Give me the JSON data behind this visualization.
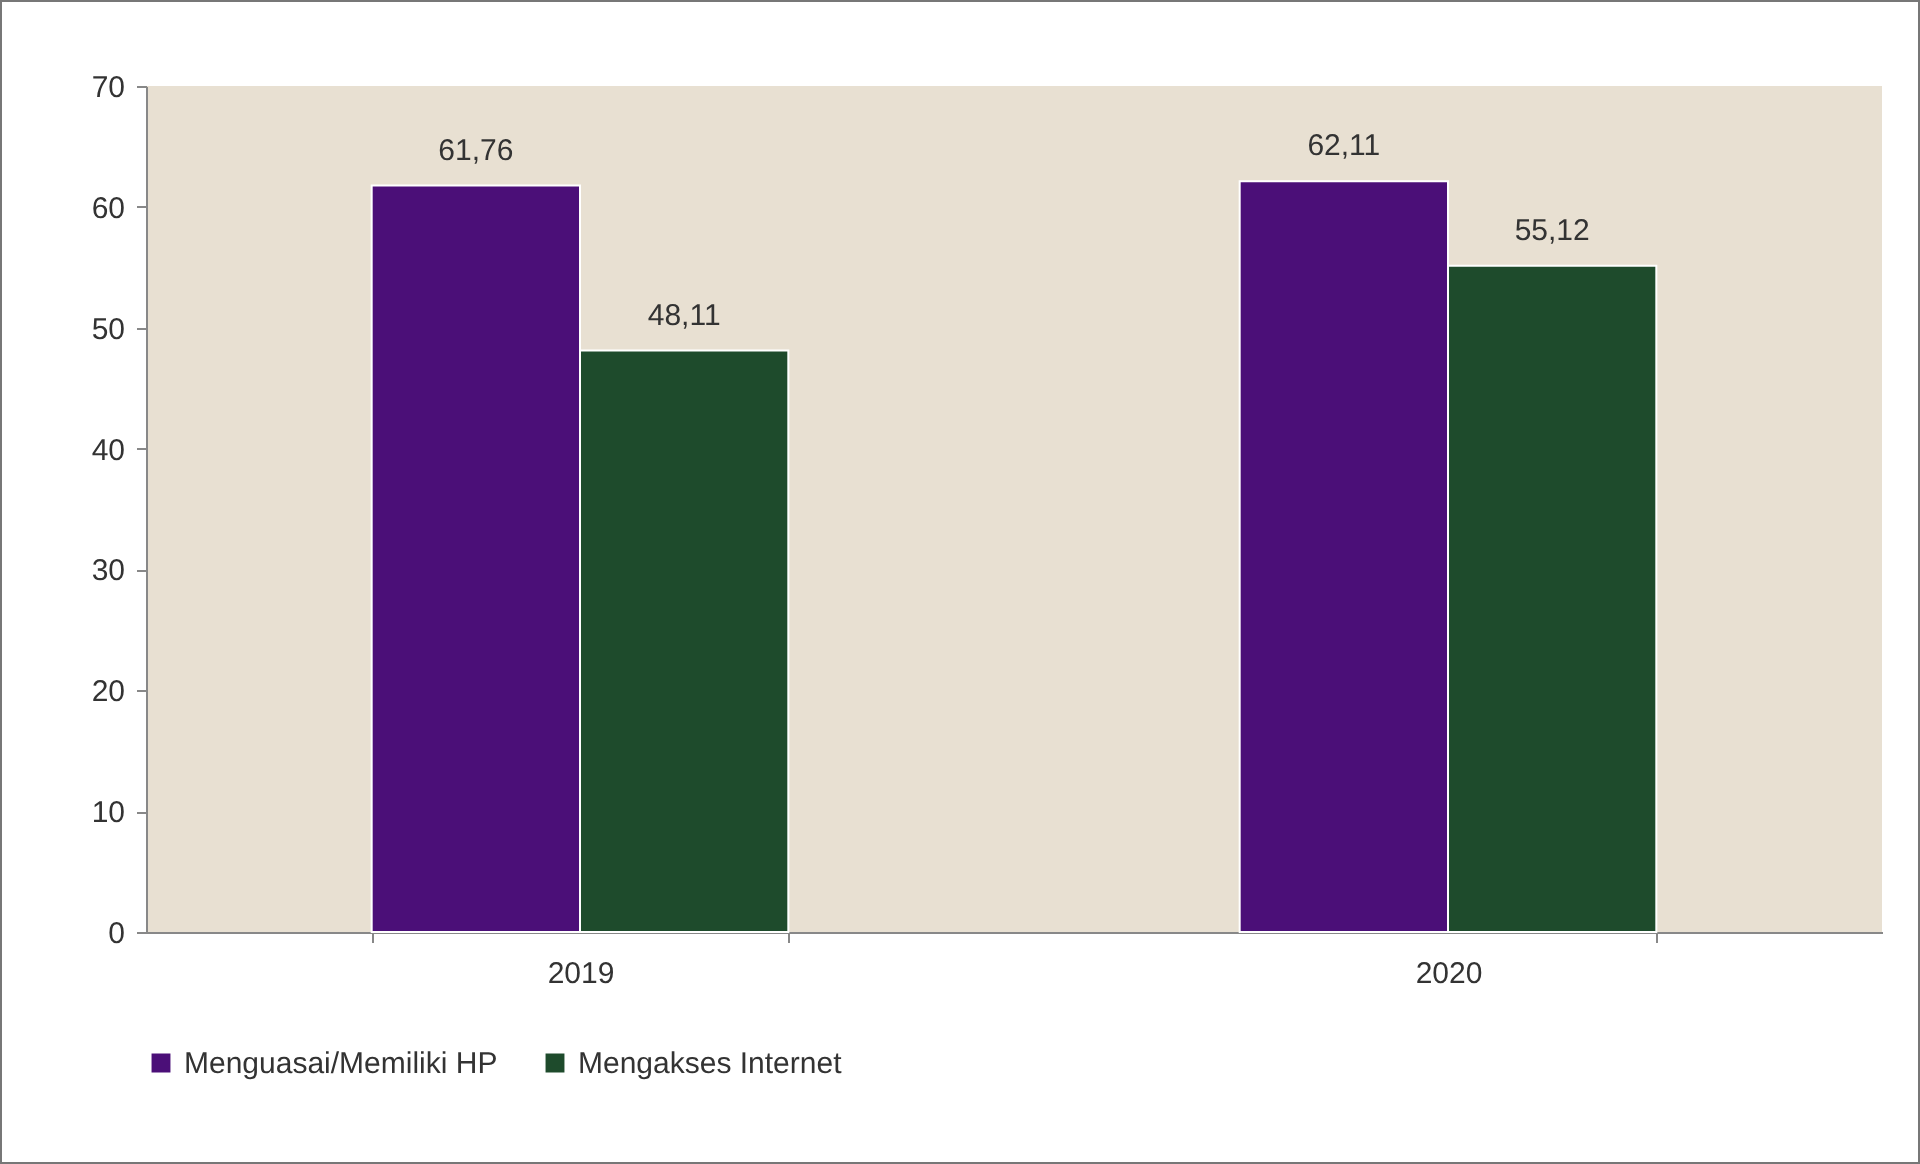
{
  "chart_data": {
    "type": "bar",
    "categories": [
      "2019",
      "2020"
    ],
    "series": [
      {
        "name": "Menguasai/Memiliki HP",
        "color": "#4b0f78",
        "values": [
          61.76,
          62.11
        ],
        "value_labels": [
          "61,76",
          "62,11"
        ]
      },
      {
        "name": "Mengakses Internet",
        "color": "#1e4b2c",
        "values": [
          48.11,
          55.12
        ],
        "value_labels": [
          "48,11",
          "55,12"
        ]
      }
    ],
    "ylim": [
      0,
      70
    ],
    "yticks": [
      0,
      10,
      20,
      30,
      40,
      50,
      60,
      70
    ],
    "grid": false,
    "legend": "bottom"
  }
}
